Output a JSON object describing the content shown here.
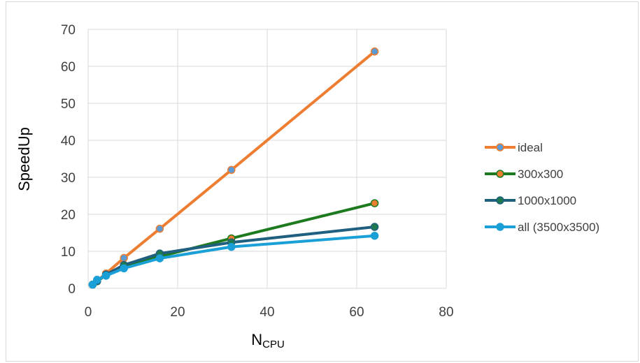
{
  "chart_data": {
    "type": "line",
    "xlabel": "N",
    "xlabel_sub": "CPU",
    "ylabel": "SpeedUp",
    "xlim": [
      0,
      80
    ],
    "ylim": [
      0,
      70
    ],
    "xticks": [
      0,
      20,
      40,
      60,
      80
    ],
    "yticks": [
      0,
      10,
      20,
      30,
      40,
      50,
      60,
      70
    ],
    "grid": true,
    "legend_position": "right",
    "series": [
      {
        "name": "ideal",
        "color": "#ed7d31",
        "marker_fill": "#5b9bd5",
        "marker_edge": "#ed7d31",
        "x": [
          1,
          2,
          4,
          8,
          16,
          32,
          64
        ],
        "y": [
          1,
          2,
          4,
          8.2,
          16.1,
          32,
          64
        ]
      },
      {
        "name": "300x300",
        "color": "#1e7a1e",
        "marker_fill": "#ed7d31",
        "marker_edge": "#1e7a1e",
        "x": [
          1,
          2,
          4,
          8,
          16,
          32,
          64
        ],
        "y": [
          1,
          1.9,
          3.6,
          6.2,
          8.6,
          13.5,
          23
        ]
      },
      {
        "name": "1000x1000",
        "color": "#1f5f7f",
        "marker_fill": "#1e7a4e",
        "marker_edge": "#1f5f7f",
        "x": [
          1,
          2,
          4,
          8,
          16,
          32,
          64
        ],
        "y": [
          1,
          2,
          3.7,
          6.3,
          9.4,
          12.4,
          16.6
        ]
      },
      {
        "name": "all (3500x3500)",
        "color": "#1a9fd6",
        "marker_fill": "#1a9fd6",
        "marker_edge": "#1a9fd6",
        "x": [
          1,
          2,
          4,
          8,
          16,
          32,
          64
        ],
        "y": [
          1,
          2.3,
          3.4,
          5.4,
          8.1,
          11.2,
          14.2
        ]
      }
    ]
  }
}
